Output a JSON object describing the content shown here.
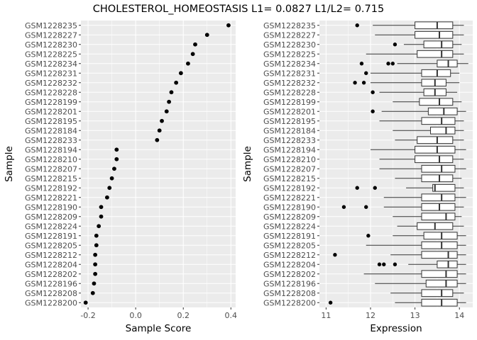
{
  "chart_title": "CHOLESTEROL_HOMEOSTASIS L1= 0.0827 L1/L2= 0.715",
  "colors": {
    "panel": "#ebebeb",
    "grid_major": "#ffffff",
    "point": "#000000",
    "box_fill": "#ffffff",
    "box_line": "#333333",
    "tick_text": "#4d4d4d"
  },
  "samples": [
    "GSM1228235",
    "GSM1228227",
    "GSM1228230",
    "GSM1228225",
    "GSM1228234",
    "GSM1228231",
    "GSM1228232",
    "GSM1228228",
    "GSM1228199",
    "GSM1228201",
    "GSM1228195",
    "GSM1228184",
    "GSM1228233",
    "GSM1228194",
    "GSM1228210",
    "GSM1228207",
    "GSM1228215",
    "GSM1228192",
    "GSM1228221",
    "GSM1228190",
    "GSM1228209",
    "GSM1228224",
    "GSM1228191",
    "GSM1228205",
    "GSM1228212",
    "GSM1228204",
    "GSM1228202",
    "GSM1228196",
    "GSM1228208",
    "GSM1228200"
  ],
  "chart_data": [
    {
      "type": "scatter",
      "xlabel": "Sample Score",
      "ylabel": "Sample",
      "xlim": [
        -0.23,
        0.42
      ],
      "xticks": [
        -0.2,
        0.0,
        0.2,
        0.4
      ],
      "xtick_labels": [
        "-0.2",
        "0.0",
        "0.2",
        "0.4"
      ],
      "grid": true,
      "values": [
        0.39,
        0.3,
        0.25,
        0.24,
        0.22,
        0.19,
        0.17,
        0.15,
        0.14,
        0.13,
        0.11,
        0.1,
        0.09,
        -0.08,
        -0.08,
        -0.09,
        -0.1,
        -0.11,
        -0.12,
        -0.145,
        -0.145,
        -0.155,
        -0.165,
        -0.165,
        -0.17,
        -0.17,
        -0.17,
        -0.175,
        -0.18,
        -0.21
      ]
    },
    {
      "type": "box",
      "xlabel": "Expression",
      "ylabel": "Sample",
      "xlim": [
        10.85,
        14.3
      ],
      "xticks": [
        11,
        12,
        13,
        14
      ],
      "xtick_labels": [
        "11",
        "12",
        "13",
        "14"
      ],
      "grid": true,
      "boxes": [
        {
          "min": 12.05,
          "q1": 13.0,
          "median": 13.5,
          "q3": 13.85,
          "max": 14.1,
          "outliers": [
            11.7
          ]
        },
        {
          "min": 12.1,
          "q1": 13.0,
          "median": 13.55,
          "q3": 13.85,
          "max": 14.1,
          "outliers": []
        },
        {
          "min": 12.75,
          "q1": 13.2,
          "median": 13.6,
          "q3": 13.85,
          "max": 14.05,
          "outliers": [
            12.55
          ]
        },
        {
          "min": 11.9,
          "q1": 13.05,
          "median": 13.6,
          "q3": 13.85,
          "max": 14.1,
          "outliers": []
        },
        {
          "min": 12.6,
          "q1": 13.5,
          "median": 13.75,
          "q3": 13.95,
          "max": 14.2,
          "outliers": [
            11.8,
            12.4,
            12.5
          ]
        },
        {
          "min": 12.0,
          "q1": 13.15,
          "median": 13.5,
          "q3": 13.8,
          "max": 14.0,
          "outliers": [
            11.9
          ]
        },
        {
          "min": 12.0,
          "q1": 13.15,
          "median": 13.45,
          "q3": 13.7,
          "max": 14.0,
          "outliers": [
            11.65,
            11.85
          ]
        },
        {
          "min": 12.2,
          "q1": 13.2,
          "median": 13.45,
          "q3": 13.7,
          "max": 13.95,
          "outliers": [
            12.05
          ]
        },
        {
          "min": 12.5,
          "q1": 13.1,
          "median": 13.55,
          "q3": 13.85,
          "max": 14.05,
          "outliers": []
        },
        {
          "min": 12.25,
          "q1": 13.3,
          "median": 13.65,
          "q3": 13.95,
          "max": 14.15,
          "outliers": [
            12.05
          ]
        },
        {
          "min": 12.2,
          "q1": 13.15,
          "median": 13.6,
          "q3": 13.9,
          "max": 14.1,
          "outliers": []
        },
        {
          "min": 12.5,
          "q1": 13.35,
          "median": 13.7,
          "q3": 13.9,
          "max": 14.1,
          "outliers": []
        },
        {
          "min": 12.55,
          "q1": 13.05,
          "median": 13.5,
          "q3": 13.85,
          "max": 14.1,
          "outliers": []
        },
        {
          "min": 12.0,
          "q1": 13.0,
          "median": 13.5,
          "q3": 13.9,
          "max": 14.15,
          "outliers": []
        },
        {
          "min": 12.2,
          "q1": 13.0,
          "median": 13.55,
          "q3": 13.85,
          "max": 14.1,
          "outliers": []
        },
        {
          "min": 12.2,
          "q1": 13.15,
          "median": 13.6,
          "q3": 13.9,
          "max": 14.15,
          "outliers": []
        },
        {
          "min": 12.55,
          "q1": 13.15,
          "median": 13.55,
          "q3": 13.85,
          "max": 14.05,
          "outliers": []
        },
        {
          "min": 12.8,
          "q1": 13.4,
          "median": 13.45,
          "q3": 13.9,
          "max": 14.1,
          "outliers": [
            11.7,
            12.1
          ]
        },
        {
          "min": 12.3,
          "q1": 13.15,
          "median": 13.6,
          "q3": 13.9,
          "max": 14.15,
          "outliers": []
        },
        {
          "min": 12.3,
          "q1": 13.15,
          "median": 13.55,
          "q3": 13.9,
          "max": 14.1,
          "outliers": [
            11.4,
            11.9
          ]
        },
        {
          "min": 12.5,
          "q1": 13.15,
          "median": 13.7,
          "q3": 13.9,
          "max": 14.05,
          "outliers": []
        },
        {
          "min": 12.6,
          "q1": 13.05,
          "median": 13.45,
          "q3": 13.85,
          "max": 14.1,
          "outliers": []
        },
        {
          "min": 12.5,
          "q1": 13.2,
          "median": 13.6,
          "q3": 13.95,
          "max": 14.15,
          "outliers": [
            11.95
          ]
        },
        {
          "min": 11.9,
          "q1": 13.15,
          "median": 13.6,
          "q3": 13.95,
          "max": 14.15,
          "outliers": []
        },
        {
          "min": 12.45,
          "q1": 13.15,
          "median": 13.75,
          "q3": 13.95,
          "max": 14.15,
          "outliers": [
            11.2
          ]
        },
        {
          "min": 12.85,
          "q1": 13.5,
          "median": 13.75,
          "q3": 13.95,
          "max": 14.15,
          "outliers": [
            12.2,
            12.3,
            12.55
          ]
        },
        {
          "min": 11.85,
          "q1": 13.15,
          "median": 13.7,
          "q3": 13.95,
          "max": 14.15,
          "outliers": []
        },
        {
          "min": 12.1,
          "q1": 13.25,
          "median": 13.7,
          "q3": 13.95,
          "max": 14.15,
          "outliers": []
        },
        {
          "min": 12.45,
          "q1": 13.15,
          "median": 13.6,
          "q3": 13.85,
          "max": 14.1,
          "outliers": []
        },
        {
          "min": 12.55,
          "q1": 13.15,
          "median": 13.6,
          "q3": 13.95,
          "max": 14.15,
          "outliers": [
            11.1
          ]
        }
      ]
    }
  ]
}
